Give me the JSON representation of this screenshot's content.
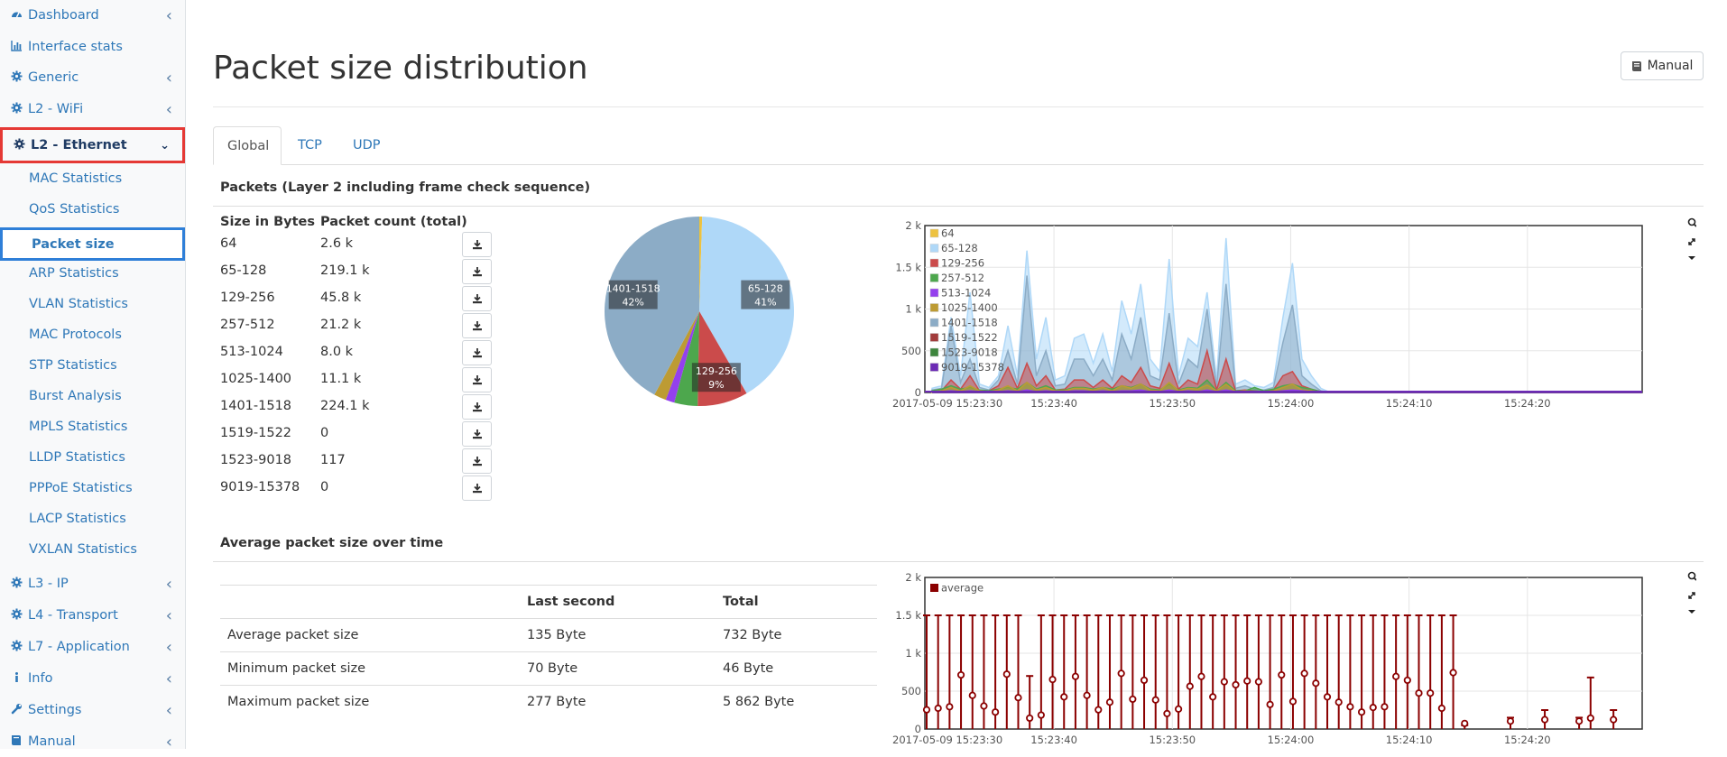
{
  "sidebar": {
    "items": [
      {
        "label": "Dashboard",
        "icon": "dashboard-icon",
        "chevron": true
      },
      {
        "label": "Interface stats",
        "icon": "bar-chart-icon",
        "chevron": false
      },
      {
        "label": "Generic",
        "icon": "gear-icon",
        "chevron": true
      },
      {
        "label": "L2 - WiFi",
        "icon": "gear-icon",
        "chevron": true
      },
      {
        "label": "L2 - Ethernet",
        "icon": "gear-icon",
        "chevron": true,
        "expanded": true
      }
    ],
    "sub_items": [
      {
        "label": "MAC Statistics"
      },
      {
        "label": "QoS Statistics"
      },
      {
        "label": "Packet size",
        "active": true
      },
      {
        "label": "ARP Statistics"
      },
      {
        "label": "VLAN Statistics"
      },
      {
        "label": "MAC Protocols"
      },
      {
        "label": "STP Statistics"
      },
      {
        "label": "Burst Analysis"
      },
      {
        "label": "MPLS Statistics"
      },
      {
        "label": "LLDP Statistics"
      },
      {
        "label": "PPPoE Statistics"
      },
      {
        "label": "LACP Statistics"
      },
      {
        "label": "VXLAN Statistics"
      }
    ],
    "bottom_items": [
      {
        "label": "L3 - IP",
        "icon": "gear-icon"
      },
      {
        "label": "L4 - Transport",
        "icon": "gear-icon"
      },
      {
        "label": "L7 - Application",
        "icon": "gear-icon"
      },
      {
        "label": "Info",
        "icon": "info-icon"
      },
      {
        "label": "Settings",
        "icon": "wrench-icon"
      },
      {
        "label": "Manual",
        "icon": "book-icon"
      }
    ]
  },
  "page": {
    "title": "Packet size distribution",
    "manual_button": "Manual"
  },
  "tabs": [
    "Global",
    "TCP",
    "UDP"
  ],
  "packets_section": {
    "title": "Packets (Layer 2 including frame check sequence)",
    "col_size": "Size in Bytes",
    "col_count": "Packet count (total)",
    "rows": [
      {
        "size": "64",
        "count": "2.6 k"
      },
      {
        "size": "65-128",
        "count": "219.1 k"
      },
      {
        "size": "129-256",
        "count": "45.8 k"
      },
      {
        "size": "257-512",
        "count": "21.2 k"
      },
      {
        "size": "513-1024",
        "count": "8.0 k"
      },
      {
        "size": "1025-1400",
        "count": "11.1 k"
      },
      {
        "size": "1401-1518",
        "count": "224.1 k"
      },
      {
        "size": "1519-1522",
        "count": "0"
      },
      {
        "size": "1523-9018",
        "count": "117"
      },
      {
        "size": "9019-15378",
        "count": "0"
      }
    ]
  },
  "avg_section": {
    "title": "Average packet size over time",
    "col_last": "Last second",
    "col_total": "Total",
    "rows": [
      {
        "label": "Average packet size",
        "last": "135 Byte",
        "total": "732 Byte"
      },
      {
        "label": "Minimum packet size",
        "last": "70 Byte",
        "total": "46 Byte"
      },
      {
        "label": "Maximum packet size",
        "last": "277 Byte",
        "total": "5 862 Byte"
      }
    ]
  },
  "chart_data": [
    {
      "type": "pie",
      "categories": [
        "64",
        "65-128",
        "129-256",
        "257-512",
        "513-1024",
        "1025-1400",
        "1401-1518",
        "1519-1522",
        "1523-9018",
        "9019-15378"
      ],
      "values": [
        2.6,
        219.1,
        45.8,
        21.2,
        8.0,
        11.1,
        224.1,
        0,
        0.117,
        0
      ],
      "colors": [
        "#edc240",
        "#afd8f8",
        "#cb4b4b",
        "#4da74d",
        "#9440ed",
        "#bd9b33",
        "#8cacc6",
        "#a23c3c",
        "#3d853d",
        "#6c2bb5"
      ],
      "labels": [
        {
          "series": "65-128",
          "text": "65-128",
          "pct": "41%"
        },
        {
          "series": "129-256",
          "text": "129-256",
          "pct": "9%"
        },
        {
          "series": "1401-1518",
          "text": "1401-1518",
          "pct": "42%"
        }
      ]
    },
    {
      "type": "area",
      "yticks": [
        "0",
        "500",
        "1 k",
        "1.5 k",
        "2 k"
      ],
      "ylim": [
        0,
        2000
      ],
      "xticks": [
        "2017-05-09 15:23:30",
        "15:23:40",
        "15:23:50",
        "15:24:00",
        "15:24:10",
        "15:24:20"
      ],
      "legend_position": "top-left",
      "series": [
        {
          "name": "64",
          "color": "#edc240",
          "values": [
            5,
            5,
            5,
            5,
            5,
            5,
            5,
            5,
            5,
            5,
            5,
            5,
            5,
            5,
            5,
            5,
            5,
            5,
            5,
            5,
            5,
            5,
            5,
            5,
            5,
            5,
            5,
            5,
            5,
            5,
            5,
            5,
            5,
            5,
            5,
            5,
            5,
            5,
            5,
            5,
            5,
            5,
            5,
            5,
            5,
            5,
            5,
            5,
            5,
            5,
            5,
            5,
            5,
            5,
            5,
            5,
            0,
            0,
            0,
            0
          ]
        },
        {
          "name": "65-128",
          "color": "#afd8f8",
          "values": [
            50,
            80,
            900,
            200,
            1200,
            100,
            60,
            200,
            800,
            200,
            1700,
            400,
            900,
            150,
            200,
            650,
            700,
            350,
            700,
            250,
            1100,
            700,
            1300,
            400,
            250,
            1600,
            200,
            650,
            550,
            1200,
            150,
            1850,
            100,
            150,
            80,
            60,
            120,
            900,
            1550,
            400,
            200,
            50,
            0,
            0,
            0,
            0,
            0,
            0,
            0,
            0,
            0,
            0,
            0,
            0,
            0,
            0,
            0,
            0,
            0,
            0
          ]
        },
        {
          "name": "129-256",
          "color": "#cb4b4b",
          "values": [
            10,
            20,
            150,
            40,
            200,
            20,
            20,
            80,
            300,
            50,
            350,
            80,
            200,
            30,
            40,
            150,
            150,
            60,
            150,
            50,
            200,
            120,
            300,
            80,
            50,
            350,
            40,
            150,
            100,
            500,
            30,
            400,
            20,
            30,
            20,
            10,
            30,
            200,
            250,
            80,
            40,
            10,
            0,
            0,
            0,
            0,
            0,
            0,
            0,
            0,
            0,
            0,
            0,
            0,
            0,
            0,
            0,
            0,
            0,
            0
          ]
        },
        {
          "name": "257-512",
          "color": "#4da74d",
          "values": [
            20,
            40,
            80,
            40,
            60,
            30,
            20,
            40,
            60,
            40,
            120,
            40,
            80,
            30,
            30,
            60,
            60,
            40,
            60,
            40,
            80,
            60,
            100,
            40,
            30,
            100,
            30,
            60,
            50,
            150,
            20,
            120,
            20,
            20,
            60,
            20,
            40,
            80,
            100,
            60,
            40,
            10,
            0,
            0,
            0,
            0,
            0,
            0,
            0,
            0,
            0,
            0,
            0,
            0,
            0,
            0,
            0,
            0,
            0,
            0
          ]
        },
        {
          "name": "513-1024",
          "color": "#9440ed",
          "values": [
            10,
            10,
            20,
            10,
            20,
            10,
            10,
            10,
            20,
            10,
            30,
            10,
            20,
            10,
            10,
            20,
            20,
            10,
            20,
            10,
            20,
            20,
            30,
            10,
            10,
            30,
            10,
            20,
            10,
            30,
            10,
            30,
            10,
            10,
            10,
            10,
            10,
            20,
            30,
            20,
            10,
            5,
            5,
            5,
            5,
            5,
            5,
            5,
            5,
            5,
            5,
            5,
            5,
            5,
            5,
            5,
            5,
            5,
            5,
            5
          ]
        },
        {
          "name": "1025-1400",
          "color": "#bd9b33",
          "values": [
            10,
            20,
            60,
            20,
            80,
            20,
            10,
            30,
            80,
            20,
            120,
            30,
            60,
            20,
            20,
            50,
            50,
            30,
            60,
            20,
            80,
            50,
            100,
            30,
            20,
            120,
            20,
            50,
            40,
            90,
            20,
            100,
            10,
            20,
            10,
            10,
            20,
            60,
            100,
            30,
            20,
            5,
            0,
            0,
            0,
            0,
            0,
            0,
            0,
            0,
            0,
            0,
            0,
            0,
            0,
            0,
            0,
            0,
            0,
            0
          ]
        },
        {
          "name": "1401-1518",
          "color": "#8cacc6",
          "values": [
            30,
            50,
            800,
            120,
            400,
            60,
            30,
            150,
            500,
            100,
            1400,
            200,
            500,
            80,
            100,
            400,
            400,
            200,
            400,
            150,
            700,
            400,
            900,
            200,
            150,
            950,
            100,
            400,
            300,
            1000,
            60,
            1300,
            50,
            80,
            40,
            30,
            60,
            600,
            1050,
            200,
            100,
            20,
            0,
            0,
            0,
            0,
            0,
            0,
            0,
            0,
            0,
            0,
            0,
            0,
            0,
            0,
            0,
            0,
            0,
            0
          ]
        },
        {
          "name": "1519-1522",
          "color": "#a23c3c",
          "values": [
            0,
            0,
            0,
            0,
            0,
            0,
            0,
            0,
            0,
            0,
            0,
            0,
            0,
            0,
            0,
            0,
            0,
            0,
            0,
            0,
            0,
            0,
            0,
            0,
            0,
            0,
            0,
            0,
            0,
            0,
            0,
            0,
            0,
            0,
            0,
            0,
            0,
            0,
            0,
            0,
            0,
            0,
            0,
            0,
            0,
            0,
            0,
            0,
            0,
            0,
            0,
            0,
            0,
            0,
            0,
            0,
            0,
            0,
            0,
            0
          ]
        },
        {
          "name": "1523-9018",
          "color": "#3d853d",
          "values": [
            0,
            0,
            0,
            0,
            0,
            0,
            0,
            0,
            0,
            0,
            0,
            0,
            0,
            0,
            0,
            0,
            0,
            0,
            0,
            0,
            0,
            0,
            0,
            0,
            0,
            0,
            0,
            0,
            0,
            0,
            0,
            0,
            0,
            0,
            0,
            0,
            0,
            0,
            0,
            0,
            0,
            0,
            0,
            0,
            0,
            0,
            0,
            0,
            0,
            0,
            0,
            0,
            0,
            0,
            0,
            0,
            0,
            0,
            0,
            0
          ]
        },
        {
          "name": "9019-15378",
          "color": "#6c2bb5",
          "values": [
            0,
            0,
            0,
            0,
            0,
            0,
            0,
            0,
            0,
            0,
            0,
            0,
            0,
            0,
            0,
            0,
            0,
            0,
            0,
            0,
            0,
            0,
            0,
            0,
            0,
            0,
            0,
            0,
            0,
            0,
            0,
            0,
            0,
            0,
            0,
            0,
            0,
            0,
            0,
            0,
            0,
            0,
            0,
            0,
            0,
            0,
            0,
            0,
            0,
            0,
            0,
            0,
            0,
            0,
            0,
            0,
            0,
            0,
            0,
            0
          ]
        }
      ]
    },
    {
      "type": "scatter",
      "yticks": [
        "0",
        "500",
        "1 k",
        "1.5 k",
        "2 k"
      ],
      "ylim": [
        0,
        2000
      ],
      "xticks": [
        "2017-05-09 15:23:30",
        "15:23:40",
        "15:23:50",
        "15:24:00",
        "15:24:10",
        "15:24:20"
      ],
      "legend_position": "top-left",
      "series": [
        {
          "name": "average",
          "color": "#8b0000",
          "values": [
            230,
            250,
            270,
            690,
            420,
            280,
            200,
            700,
            390,
            120,
            160,
            630,
            400,
            670,
            420,
            230,
            330,
            710,
            370,
            620,
            360,
            180,
            240,
            540,
            670,
            400,
            600,
            560,
            610,
            600,
            300,
            690,
            340,
            710,
            580,
            400,
            330,
            270,
            200,
            260,
            270,
            670,
            620,
            450,
            450,
            250,
            720,
            50,
            0,
            0,
            0,
            0,
            0,
            0,
            0,
            0,
            0,
            0,
            0,
            0
          ],
          "max": [
            1500,
            1500,
            1500,
            1500,
            1500,
            1500,
            1500,
            1500,
            1500,
            700,
            1500,
            1500,
            1500,
            1500,
            1500,
            1500,
            1500,
            1500,
            1500,
            1500,
            1500,
            1500,
            1500,
            1500,
            1500,
            1500,
            1500,
            1500,
            1500,
            1500,
            1500,
            1500,
            1500,
            1500,
            1500,
            1500,
            1500,
            1500,
            1500,
            1500,
            1500,
            1500,
            1500,
            1500,
            1500,
            1500,
            1500,
            50,
            0,
            0,
            0,
            0,
            0,
            0,
            0,
            0,
            0,
            0,
            0,
            0
          ]
        }
      ],
      "extra_points": [
        {
          "x": 51,
          "y": 80,
          "max": 150
        },
        {
          "x": 54,
          "y": 100,
          "max": 250
        },
        {
          "x": 57,
          "y": 80,
          "max": 150
        },
        {
          "x": 58,
          "y": 120,
          "max": 680
        },
        {
          "x": 60,
          "y": 100,
          "max": 250
        }
      ]
    }
  ]
}
